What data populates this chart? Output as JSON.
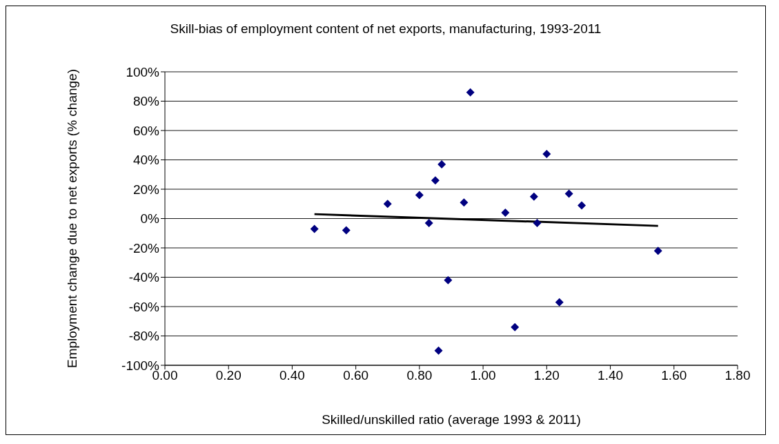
{
  "chart_data": {
    "type": "scatter",
    "title": "Skill-bias of employment content of net exports, manufacturing, 1993-2011",
    "xlabel": "Skilled/unskilled ratio (average 1993 & 2011)",
    "ylabel": "Employment change due to net exports (% change)",
    "xlim": [
      0,
      1.8
    ],
    "xticks": [
      {
        "value": 0,
        "label": "0.00"
      },
      {
        "value": 0.2,
        "label": "0.20"
      },
      {
        "value": 0.4,
        "label": "0.40"
      },
      {
        "value": 0.6,
        "label": "0.60"
      },
      {
        "value": 0.8,
        "label": "0.80"
      },
      {
        "value": 1,
        "label": "1.00"
      },
      {
        "value": 1.2,
        "label": "1.20"
      },
      {
        "value": 1.4,
        "label": "1.40"
      },
      {
        "value": 1.6,
        "label": "1.60"
      },
      {
        "value": 1.8,
        "label": "1.80"
      }
    ],
    "ylim": [
      -100,
      100
    ],
    "yticks": [
      {
        "value": -100,
        "label": "-100%"
      },
      {
        "value": -80,
        "label": "-80%"
      },
      {
        "value": -60,
        "label": "-60%"
      },
      {
        "value": -40,
        "label": "-40%"
      },
      {
        "value": -20,
        "label": "-20%"
      },
      {
        "value": 0,
        "label": "0%"
      },
      {
        "value": 20,
        "label": "20%"
      },
      {
        "value": 40,
        "label": "40%"
      },
      {
        "value": 60,
        "label": "60%"
      },
      {
        "value": 80,
        "label": "80%"
      },
      {
        "value": 100,
        "label": "100%"
      }
    ],
    "grid": "y",
    "legend": false,
    "series": [
      {
        "color": "#000080",
        "marker": "diamond",
        "x": [
          0.47,
          0.57,
          0.7,
          0.8,
          0.83,
          0.85,
          0.87,
          0.89,
          0.86,
          0.94,
          0.96,
          1.07,
          1.1,
          1.16,
          1.17,
          1.2,
          1.24,
          1.27,
          1.31,
          1.55
        ],
        "values": [
          -7,
          -8,
          10,
          16,
          -3,
          26,
          37,
          -42,
          -90,
          11,
          86,
          4,
          -74,
          15,
          -3,
          44,
          -57,
          17,
          9,
          -22
        ]
      },
      {
        "type": "line",
        "color": "#000000",
        "marker": "none",
        "line_style": "solid",
        "x": [
          0.47,
          1.55
        ],
        "values": [
          3,
          -5
        ]
      }
    ]
  }
}
